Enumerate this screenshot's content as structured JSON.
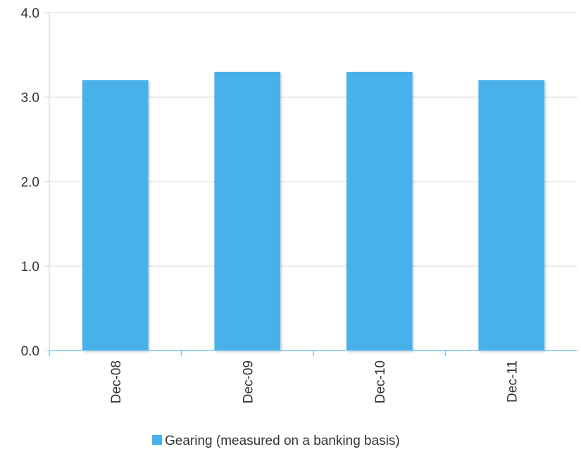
{
  "chart_data": {
    "type": "bar",
    "categories": [
      "Dec-08",
      "Dec-09",
      "Dec-10",
      "Dec-11"
    ],
    "series": [
      {
        "name": "Gearing (measured on a banking basis)",
        "values": [
          3.2,
          3.3,
          3.3,
          3.2
        ],
        "color": "#4ab1ea"
      }
    ],
    "yticks": [
      "0.0",
      "1.0",
      "2.0",
      "3.0",
      "4.0"
    ],
    "ylim": [
      0,
      4
    ],
    "grid": true,
    "legend": "bottom-center"
  }
}
